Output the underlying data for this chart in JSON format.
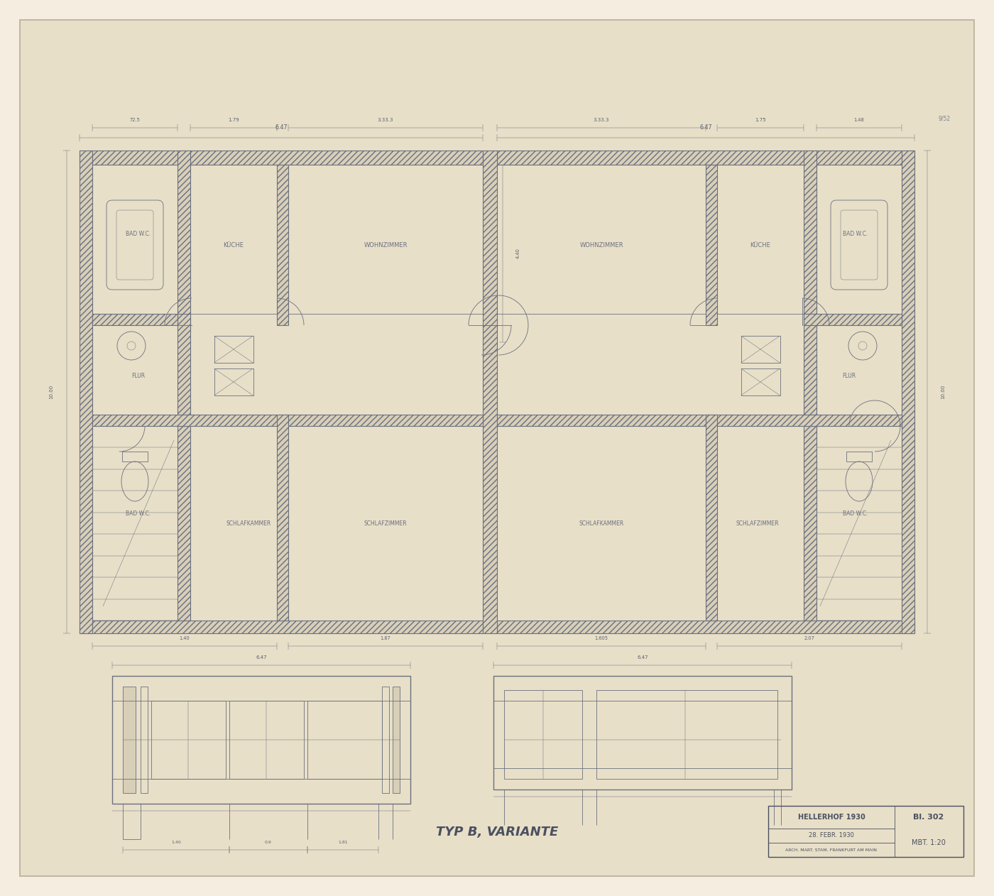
{
  "bg_outer": "#f5ede0",
  "bg_paper": "#e8dfc8",
  "line_col": "#6b7080",
  "line_col_dark": "#4a5060",
  "hatch_fill": "#d8cfb8",
  "title_text": "TYP B, VARIANTE",
  "stamp_title": "HELLERHOF 1930",
  "stamp_date": "28. FEBR. 1930",
  "stamp_sheet": "Bl. 302",
  "stamp_scale": "MBT. 1:20",
  "stamp_arch": "ARCH. MART. STAM, FRANKFURT AM MAIN",
  "figsize": [
    14.0,
    12.62
  ],
  "dpi": 100
}
